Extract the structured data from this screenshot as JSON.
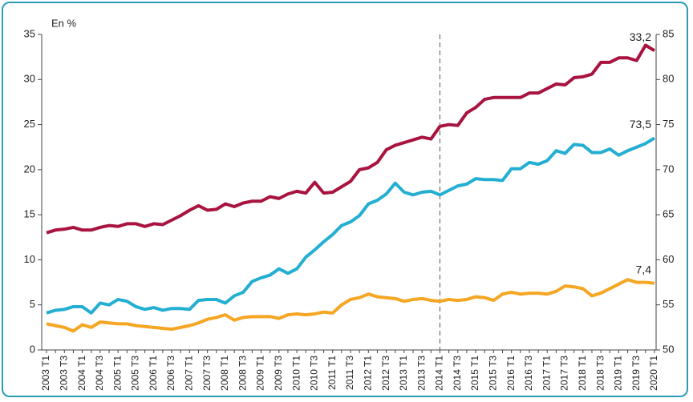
{
  "chart_data": {
    "type": "line",
    "y_axis_label": "En %",
    "categories": [
      "2003 T1",
      null,
      "2003 T3",
      null,
      "2004 T1",
      null,
      "2004 T3",
      null,
      "2005 T1",
      null,
      "2005 T3",
      null,
      "2006 T1",
      null,
      "2006 T3",
      null,
      "2007 T1",
      null,
      "2007 T3",
      null,
      "2008 T1",
      null,
      "2008 T3",
      null,
      "2009 T1",
      null,
      "2009 T3",
      null,
      "2010 T1",
      null,
      "2010 T3",
      null,
      "2011 T1",
      null,
      "2011 T3",
      null,
      "2012 T1",
      null,
      "2012 T3",
      null,
      "2013 T1",
      null,
      "2013 T3",
      null,
      "2014 T1",
      null,
      "2014 T3",
      null,
      "2015 T1",
      null,
      "2015 T3",
      null,
      "2016 T1",
      null,
      "2016 T3",
      null,
      "2017 T1",
      null,
      "2017 T3",
      null,
      "2018 T1",
      null,
      "2018 T3",
      null,
      "2019 T1",
      null,
      "2019 T3",
      null,
      "2020 T1"
    ],
    "series": [
      {
        "color": "#a8133f",
        "values": [
          13.0,
          13.3,
          13.4,
          13.6,
          13.3,
          13.3,
          13.6,
          13.8,
          13.7,
          14.0,
          14.0,
          13.7,
          14.0,
          13.9,
          14.4,
          14.9,
          15.5,
          16.0,
          15.5,
          15.6,
          16.2,
          15.9,
          16.3,
          16.5,
          16.5,
          17.0,
          16.8,
          17.3,
          17.6,
          17.4,
          18.6,
          17.4,
          17.5,
          18.1,
          18.7,
          20.0,
          20.2,
          20.8,
          22.2,
          22.7,
          23.0,
          23.3,
          23.6,
          23.4,
          24.8,
          25.0,
          24.9,
          26.3,
          26.9,
          27.8,
          28.0,
          28.0,
          28.0,
          28.0,
          28.5,
          28.5,
          29.0,
          29.5,
          29.4,
          30.2,
          30.3,
          30.6,
          31.9,
          31.9,
          32.4,
          32.4,
          32.1,
          33.8,
          33.2
        ],
        "value_labels": [
          null,
          null,
          null,
          null,
          null,
          null,
          null,
          null,
          null,
          null,
          null,
          null,
          null,
          null,
          null,
          null,
          null,
          null,
          null,
          null,
          null,
          null,
          null,
          null,
          null,
          null,
          null,
          null,
          null,
          null,
          null,
          null,
          null,
          null,
          null,
          null,
          null,
          null,
          null,
          null,
          null,
          null,
          null,
          null,
          null,
          null,
          null,
          null,
          null,
          null,
          null,
          null,
          null,
          null,
          null,
          null,
          null,
          null,
          null,
          null,
          null,
          null,
          null,
          null,
          null,
          null,
          null,
          null,
          "33,2"
        ]
      },
      {
        "color": "#f5a623",
        "values": [
          2.9,
          2.7,
          2.5,
          2.1,
          2.8,
          2.5,
          3.1,
          3.0,
          2.9,
          2.9,
          2.7,
          2.6,
          2.5,
          2.4,
          2.3,
          2.5,
          2.7,
          3.0,
          3.4,
          3.6,
          3.9,
          3.3,
          3.6,
          3.7,
          3.7,
          3.7,
          3.5,
          3.9,
          4.0,
          3.9,
          4.0,
          4.2,
          4.1,
          5.0,
          5.6,
          5.8,
          6.2,
          5.9,
          5.8,
          5.7,
          5.4,
          5.6,
          5.7,
          5.5,
          5.4,
          5.6,
          5.5,
          5.6,
          5.9,
          5.8,
          5.5,
          6.2,
          6.4,
          6.2,
          6.3,
          6.3,
          6.2,
          6.5,
          7.1,
          7.0,
          6.8,
          6.0,
          6.3,
          6.8,
          7.3,
          7.8,
          7.5,
          7.5,
          7.4
        ],
        "value_labels": [
          null,
          null,
          null,
          null,
          null,
          null,
          null,
          null,
          null,
          null,
          null,
          null,
          null,
          null,
          null,
          null,
          null,
          null,
          null,
          null,
          null,
          null,
          null,
          null,
          null,
          null,
          null,
          null,
          null,
          null,
          null,
          null,
          null,
          null,
          null,
          null,
          null,
          null,
          null,
          null,
          null,
          null,
          null,
          null,
          null,
          null,
          null,
          null,
          null,
          null,
          null,
          null,
          null,
          null,
          null,
          null,
          null,
          null,
          null,
          null,
          null,
          null,
          null,
          null,
          null,
          null,
          null,
          null,
          "7,4"
        ]
      },
      {
        "color": "#24afd2",
        "axis": "y2",
        "values": [
          54.1,
          54.4,
          54.5,
          54.8,
          54.8,
          54.1,
          55.2,
          55.0,
          55.6,
          55.4,
          54.8,
          54.5,
          54.7,
          54.4,
          54.6,
          54.6,
          54.5,
          55.5,
          55.6,
          55.6,
          55.2,
          56.0,
          56.4,
          57.6,
          58.0,
          58.3,
          59.0,
          58.5,
          59.0,
          60.3,
          61.1,
          62.0,
          62.8,
          63.8,
          64.2,
          64.9,
          66.2,
          66.6,
          67.3,
          68.5,
          67.5,
          67.2,
          67.5,
          67.6,
          67.2,
          67.7,
          68.2,
          68.4,
          69.0,
          68.9,
          68.9,
          68.8,
          70.1,
          70.1,
          70.8,
          70.6,
          71.0,
          72.1,
          71.8,
          72.8,
          72.7,
          71.9,
          71.9,
          72.3,
          71.6,
          72.1,
          72.5,
          72.9,
          73.5
        ],
        "value_labels": [
          null,
          null,
          null,
          null,
          null,
          null,
          null,
          null,
          null,
          null,
          null,
          null,
          null,
          null,
          null,
          null,
          null,
          null,
          null,
          null,
          null,
          null,
          null,
          null,
          null,
          null,
          null,
          null,
          null,
          null,
          null,
          null,
          null,
          null,
          null,
          null,
          null,
          null,
          null,
          null,
          null,
          null,
          null,
          null,
          null,
          null,
          null,
          null,
          null,
          null,
          null,
          null,
          null,
          null,
          null,
          null,
          null,
          null,
          null,
          null,
          null,
          null,
          null,
          null,
          null,
          null,
          null,
          null,
          "73,5"
        ]
      }
    ],
    "ylim": [
      0,
      35
    ],
    "yticks": [
      0,
      5,
      10,
      15,
      20,
      25,
      30,
      35
    ],
    "y2lim": [
      50,
      85
    ],
    "y2ticks": [
      50,
      55,
      60,
      65,
      70,
      75,
      80,
      85
    ],
    "vline_index": 44
  }
}
